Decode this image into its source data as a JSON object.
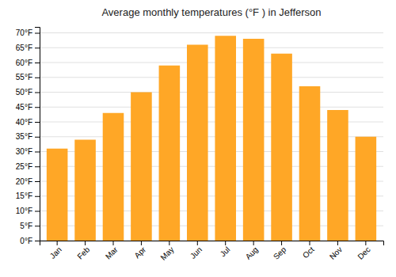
{
  "chart_data": {
    "type": "bar",
    "title": "Average monthly temperatures (°F ) in Jefferson",
    "categories": [
      "Jan",
      "Feb",
      "Mar",
      "Apr",
      "May",
      "Jun",
      "Jul",
      "Aug",
      "Sep",
      "Oct",
      "Nov",
      "Dec"
    ],
    "values": [
      31,
      34,
      43,
      50,
      59,
      66,
      69,
      68,
      63,
      52,
      44,
      35
    ],
    "color": "#FFA726",
    "ylim": [
      0,
      72
    ],
    "yticks": [
      {
        "value": 0,
        "label": "0°F"
      },
      {
        "value": 5,
        "label": "5°F"
      },
      {
        "value": 10,
        "label": "10°F"
      },
      {
        "value": 15,
        "label": "15°F"
      },
      {
        "value": 20,
        "label": "20°F"
      },
      {
        "value": 25,
        "label": "25°F"
      },
      {
        "value": 30,
        "label": "30°F"
      },
      {
        "value": 35,
        "label": "35°F"
      },
      {
        "value": 40,
        "label": "40°F"
      },
      {
        "value": 45,
        "label": "45°F"
      },
      {
        "value": 50,
        "label": "50°F"
      },
      {
        "value": 55,
        "label": "55°F"
      },
      {
        "value": 60,
        "label": "60°F"
      },
      {
        "value": 65,
        "label": "65°F"
      },
      {
        "value": 70,
        "label": "70°F"
      }
    ],
    "grid": true
  }
}
